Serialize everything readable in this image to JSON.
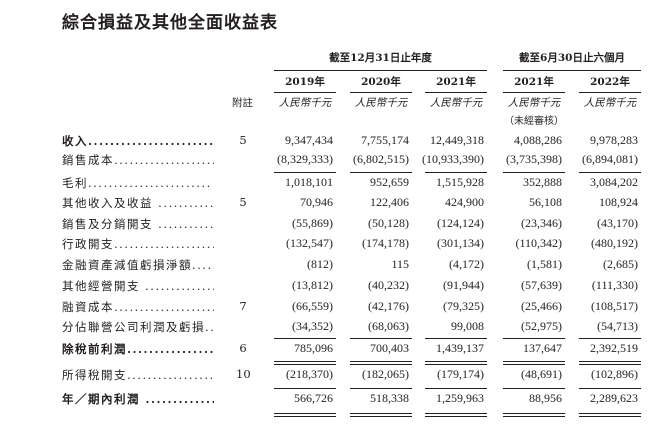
{
  "title": "綜合損益及其他全面收益表",
  "header": {
    "group_annual": "截至12月31日止年度",
    "group_interim": "截至6月30日止六個月",
    "note_label": "附註",
    "years": [
      "2019年",
      "2020年",
      "2021年",
      "2021年",
      "2022年"
    ],
    "units": [
      "人民幣千元",
      "人民幣千元",
      "人民幣千元",
      "人民幣千元",
      "人民幣千元"
    ],
    "unaudited": "（未經審核）"
  },
  "rows": [
    {
      "label": "收入........................",
      "note": "5",
      "values": [
        "9,347,434",
        "7,755,174",
        "12,449,318",
        "4,088,286",
        "9,978,283"
      ]
    },
    {
      "label": "銷售成本........................",
      "note": "",
      "values": [
        "(8,329,333)",
        "(6,802,515)",
        "(10,933,390)",
        "(3,735,398)",
        "(6,894,081)"
      ]
    },
    {
      "label": "毛利........................",
      "note": "",
      "values": [
        "1,018,101",
        "952,659",
        "1,515,928",
        "352,888",
        "3,084,202"
      ]
    },
    {
      "label": "其他收入及收益 ........................",
      "note": "5",
      "values": [
        "70,946",
        "122,406",
        "424,900",
        "56,108",
        "108,924"
      ]
    },
    {
      "label": "銷售及分銷開支 ........................",
      "note": "",
      "values": [
        "(55,869)",
        "(50,128)",
        "(124,124)",
        "(23,346)",
        "(43,170)"
      ]
    },
    {
      "label": "行政開支........................",
      "note": "",
      "values": [
        "(132,547)",
        "(174,178)",
        "(301,134)",
        "(110,342)",
        "(480,192)"
      ]
    },
    {
      "label": "金融資產減值虧損淨額........................",
      "note": "",
      "values": [
        "(812)",
        "115",
        "(4,172)",
        "(1,581)",
        "(2,685)"
      ]
    },
    {
      "label": "其他經營開支 ........................",
      "note": "",
      "values": [
        "(13,812)",
        "(40,232)",
        "(91,944)",
        "(57,639)",
        "(111,330)"
      ]
    },
    {
      "label": "融資成本........................",
      "note": "7",
      "values": [
        "(66,559)",
        "(42,176)",
        "(79,325)",
        "(25,466)",
        "(108,517)"
      ]
    },
    {
      "label": "分佔聯營公司利潤及虧損........................",
      "note": "",
      "values": [
        "(34,352)",
        "(68,063)",
        "99,008",
        "(52,975)",
        "(54,713)"
      ]
    },
    {
      "label": "除稅前利潤........................",
      "note": "6",
      "values": [
        "785,096",
        "700,403",
        "1,439,137",
        "137,647",
        "2,392,519"
      ]
    },
    {
      "label": "所得稅開支........................",
      "note": "10",
      "values": [
        "(218,370)",
        "(182,065)",
        "(179,174)",
        "(48,691)",
        "(102,896)"
      ]
    },
    {
      "label": "年／期內利潤 ........................",
      "note": "",
      "values": [
        "566,726",
        "518,338",
        "1,259,963",
        "88,956",
        "2,289,623"
      ]
    }
  ]
}
